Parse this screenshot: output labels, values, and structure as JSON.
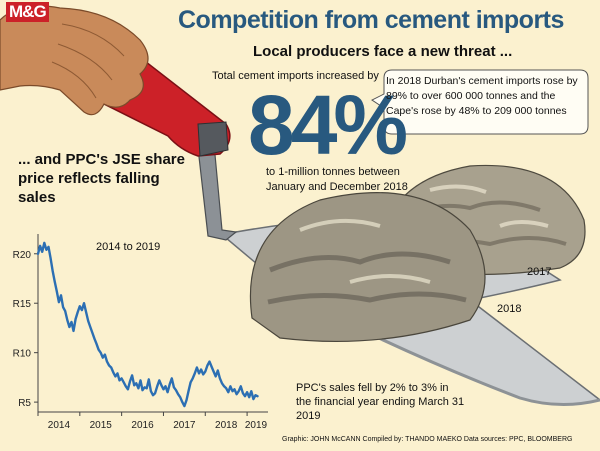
{
  "logo": "M&G",
  "title": "Competition from cement imports",
  "subtitle": "Local producers face a new threat ...",
  "imports": {
    "intro": "Total cement imports increased by",
    "percent": "84%",
    "detail": "to 1-million tonnes between January and December 2018"
  },
  "callout": "In 2018 Durban's cement imports rose by 89% to over 600 000 tonnes and the Cape's rose by 48% to 209 000 tonnes",
  "share_heading": "... and PPC's JSE share price reflects falling sales",
  "range_label": "2014 to 2019",
  "sales_note": "PPC's sales fell by 2% to 3% in the financial year ending March 31 2019",
  "pile_labels": {
    "pile_2017": "2017",
    "pile_2018": "2018"
  },
  "credits": "Graphic: JOHN McCANN  Compiled by: THANDO MAEKO  Data sources: PPC, BLOOMBERG",
  "colors": {
    "background": "#fbf1cf",
    "accent_blue": "#28597f",
    "line_blue": "#2c6fb3",
    "trowel_red": "#cc2128"
  },
  "chart_data": {
    "type": "line",
    "series": [
      {
        "x": [
          2014.0,
          2014.05,
          2014.1,
          2014.15,
          2014.2,
          2014.25,
          2014.3,
          2014.35,
          2014.4,
          2014.45,
          2014.5,
          2014.55,
          2014.6,
          2014.65,
          2014.7,
          2014.75,
          2014.8,
          2014.85,
          2014.9,
          2014.95,
          2015.0,
          2015.05,
          2015.1,
          2015.15,
          2015.2,
          2015.25,
          2015.3,
          2015.35,
          2015.4,
          2015.45,
          2015.5,
          2015.55,
          2015.6,
          2015.65,
          2015.7,
          2015.75,
          2015.8,
          2015.85,
          2015.9,
          2015.95,
          2016.0,
          2016.05,
          2016.1,
          2016.15,
          2016.2,
          2016.25,
          2016.3,
          2016.35,
          2016.4,
          2016.45,
          2016.5,
          2016.55,
          2016.6,
          2016.65,
          2016.7,
          2016.75,
          2016.8,
          2016.85,
          2016.9,
          2016.95,
          2017.0,
          2017.05,
          2017.1,
          2017.15,
          2017.2,
          2017.25,
          2017.3,
          2017.35,
          2017.4,
          2017.45,
          2017.5,
          2017.55,
          2017.6,
          2017.65,
          2017.7,
          2017.75,
          2017.8,
          2017.85,
          2017.9,
          2017.95,
          2018.0,
          2018.05,
          2018.1,
          2018.15,
          2018.2,
          2018.25,
          2018.3,
          2018.35,
          2018.4,
          2018.45,
          2018.5,
          2018.55,
          2018.6,
          2018.65,
          2018.7,
          2018.75,
          2018.8,
          2018.85,
          2018.9,
          2018.95,
          2019.0,
          2019.05,
          2019.1,
          2019.15,
          2019.2,
          2019.25
        ],
        "y": [
          20.0,
          20.8,
          20.2,
          21.1,
          20.4,
          20.7,
          19.6,
          18.3,
          17.2,
          16.2,
          15.1,
          15.8,
          14.6,
          14.2,
          13.3,
          12.6,
          13.1,
          12.2,
          13.4,
          14.1,
          14.7,
          14.3,
          15.0,
          14.1,
          13.2,
          12.6,
          12.0,
          11.4,
          10.9,
          10.3,
          10.0,
          9.5,
          9.8,
          9.1,
          8.7,
          8.5,
          8.0,
          7.6,
          7.9,
          7.2,
          7.4,
          7.0,
          6.6,
          6.3,
          7.1,
          7.7,
          6.7,
          6.9,
          6.4,
          7.2,
          6.2,
          6.5,
          6.4,
          7.3,
          6.1,
          5.7,
          5.9,
          6.6,
          7.2,
          6.7,
          6.3,
          6.6,
          6.0,
          6.8,
          7.4,
          6.5,
          6.2,
          5.8,
          5.5,
          5.0,
          4.6,
          5.2,
          6.1,
          7.0,
          7.4,
          7.9,
          8.5,
          7.9,
          8.3,
          7.8,
          8.1,
          8.7,
          9.1,
          8.6,
          8.1,
          7.6,
          8.2,
          7.4,
          6.9,
          6.6,
          6.4,
          6.0,
          6.6,
          6.1,
          6.3,
          5.8,
          6.1,
          6.6,
          5.9,
          5.6,
          6.0,
          5.5,
          6.1,
          5.3,
          5.7,
          5.6
        ]
      }
    ],
    "xlim": [
      2014,
      2019.5
    ],
    "ylim": [
      4,
      22
    ],
    "yticks": [
      5,
      10,
      15,
      20
    ],
    "yticklabels": [
      "R5",
      "R10",
      "R15",
      "R20"
    ],
    "xticklabels": [
      "2014",
      "2015",
      "2016",
      "2017",
      "2018",
      "2019"
    ],
    "grid": false,
    "legend": "none"
  }
}
